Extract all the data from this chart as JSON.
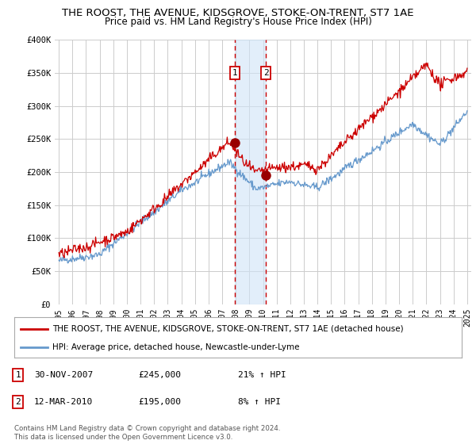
{
  "title": "THE ROOST, THE AVENUE, KIDSGROVE, STOKE-ON-TRENT, ST7 1AE",
  "subtitle": "Price paid vs. HM Land Registry's House Price Index (HPI)",
  "ylabel_ticks": [
    "£0",
    "£50K",
    "£100K",
    "£150K",
    "£200K",
    "£250K",
    "£300K",
    "£350K",
    "£400K"
  ],
  "ytick_values": [
    0,
    50000,
    100000,
    150000,
    200000,
    250000,
    300000,
    350000,
    400000
  ],
  "ylim": [
    0,
    400000
  ],
  "xlim_start": 1994.7,
  "xlim_end": 2025.3,
  "xtick_years": [
    1995,
    1996,
    1997,
    1998,
    1999,
    2000,
    2001,
    2002,
    2003,
    2004,
    2005,
    2006,
    2007,
    2008,
    2009,
    2010,
    2011,
    2012,
    2013,
    2014,
    2015,
    2016,
    2017,
    2018,
    2019,
    2020,
    2021,
    2022,
    2023,
    2024,
    2025
  ],
  "red_line_color": "#cc0000",
  "blue_line_color": "#6699cc",
  "grid_color": "#cccccc",
  "vline1_x": 2007.92,
  "vline2_x": 2010.21,
  "vline_color": "#cc0000",
  "highlight_fill": "#d0e4f7",
  "marker1_label": "1",
  "marker2_label": "2",
  "marker1_x": 2007.92,
  "marker1_y": 245000,
  "marker2_x": 2010.21,
  "marker2_y": 195000,
  "legend_label_red": "THE ROOST, THE AVENUE, KIDSGROVE, STOKE-ON-TRENT, ST7 1AE (detached house)",
  "legend_label_blue": "HPI: Average price, detached house, Newcastle-under-Lyme",
  "table_rows": [
    {
      "num": "1",
      "date": "30-NOV-2007",
      "price": "£245,000",
      "hpi": "21% ↑ HPI"
    },
    {
      "num": "2",
      "date": "12-MAR-2010",
      "price": "£195,000",
      "hpi": "8% ↑ HPI"
    }
  ],
  "footnote": "Contains HM Land Registry data © Crown copyright and database right 2024.\nThis data is licensed under the Open Government Licence v3.0.",
  "background_color": "#ffffff",
  "plot_bg_color": "#ffffff",
  "title_fontsize": 9.5,
  "subtitle_fontsize": 8.5
}
